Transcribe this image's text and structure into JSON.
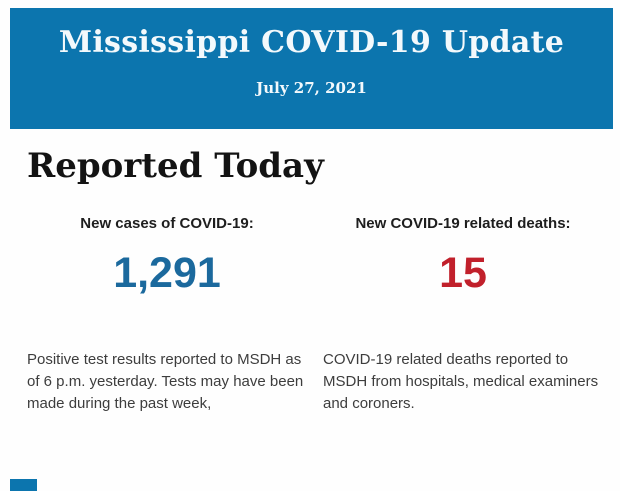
{
  "banner": {
    "title": "Mississippi COVID-19 Update",
    "date": "July 27, 2021",
    "background": "#0c75ae",
    "text_color": "#f3f9fc"
  },
  "section": {
    "heading": "Reported Today"
  },
  "stats": [
    {
      "label": "New cases of COVID-19:",
      "value": "1,291",
      "value_color": "#1b699d",
      "description": "Positive test results reported to MSDH as of 6 p.m. yesterday. Tests may have been made during the past week,"
    },
    {
      "label": "New COVID-19 related deaths:",
      "value": "15",
      "value_color": "#c1202b",
      "description": "COVID-19 related deaths reported to MSDH from hospitals, medical examiners and coroners."
    }
  ]
}
